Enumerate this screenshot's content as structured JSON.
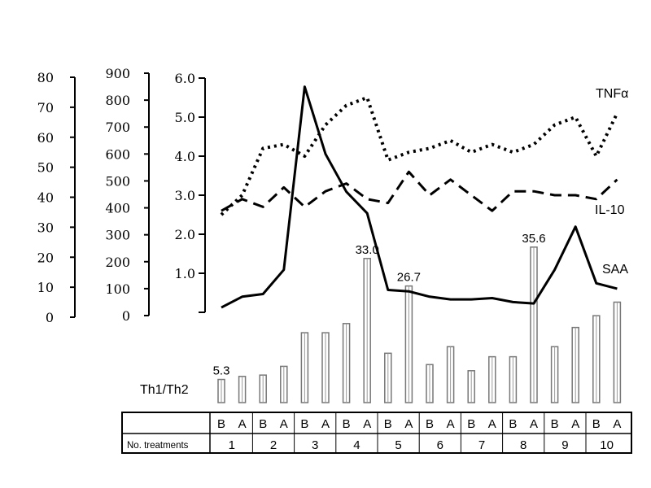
{
  "chart_data": {
    "type": "line",
    "x": [
      "1B",
      "1A",
      "2B",
      "2A",
      "3B",
      "3A",
      "4B",
      "4A",
      "5B",
      "5A",
      "6B",
      "6A",
      "7B",
      "7A",
      "8B",
      "8A",
      "9B",
      "9A",
      "10B",
      "10A"
    ],
    "axes": {
      "left_outer": {
        "min": 0,
        "max": 80,
        "ticks": [
          0,
          10,
          20,
          30,
          40,
          50,
          60,
          70,
          80
        ]
      },
      "left_middle": {
        "min": 0,
        "max": 900,
        "ticks": [
          0,
          100,
          200,
          300,
          400,
          500,
          600,
          700,
          800,
          900
        ]
      },
      "left_inner": {
        "min": 0,
        "max": 6.0,
        "ticks": [
          1.0,
          2.0,
          3.0,
          4.0,
          5.0,
          6.0
        ]
      }
    },
    "series": [
      {
        "name": "TNFα",
        "axis": "left_inner",
        "style": "dotted",
        "values": [
          2.5,
          3.0,
          4.2,
          4.3,
          4.0,
          4.8,
          5.3,
          5.5,
          3.9,
          4.1,
          4.2,
          4.4,
          4.1,
          4.3,
          4.1,
          4.3,
          4.8,
          5.0,
          4.0,
          5.1
        ]
      },
      {
        "name": "IL-10",
        "axis": "left_inner",
        "style": "dashed",
        "values": [
          2.6,
          2.9,
          2.7,
          3.2,
          2.7,
          3.1,
          3.3,
          2.9,
          2.8,
          3.6,
          3.0,
          3.4,
          3.0,
          2.6,
          3.1,
          3.1,
          3.0,
          3.0,
          2.9,
          3.4
        ]
      },
      {
        "name": "SAA",
        "axis": "left_middle",
        "style": "solid",
        "values": [
          30,
          70,
          80,
          170,
          850,
          600,
          460,
          380,
          95,
          90,
          70,
          60,
          60,
          65,
          50,
          45,
          170,
          330,
          120,
          100
        ]
      }
    ],
    "bars": {
      "name": "Th1/Th2",
      "values": [
        5.3,
        6.0,
        6.3,
        8.3,
        16.0,
        16.0,
        18.1,
        33.0,
        11.3,
        26.7,
        8.7,
        12.8,
        7.3,
        10.5,
        10.5,
        35.6,
        12.8,
        17.2,
        19.9,
        23.0
      ],
      "labels": {
        "0": "5.3",
        "7": "33.0",
        "9": "26.7",
        "15": "35.6"
      }
    },
    "table": {
      "row1_header": "",
      "row1": [
        "B",
        "A",
        "B",
        "A",
        "B",
        "A",
        "B",
        "A",
        "B",
        "A",
        "B",
        "A",
        "B",
        "A",
        "B",
        "A",
        "B",
        "A",
        "B",
        "A"
      ],
      "row2_header": "No. treatments",
      "row2": [
        "1",
        "2",
        "3",
        "4",
        "5",
        "6",
        "7",
        "8",
        "9",
        "10"
      ]
    },
    "series_labels": {
      "tnf": "TNFα",
      "il10": "IL-10",
      "saa": "SAA",
      "th": "Th1/Th2"
    }
  }
}
